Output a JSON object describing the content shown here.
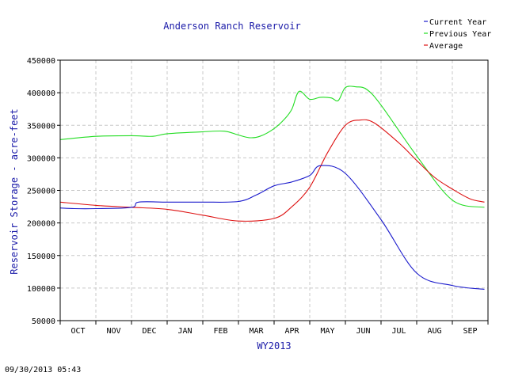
{
  "timestamp": "09/30/2013 05:43",
  "colors": {
    "current": "#1a1acc",
    "previous": "#22dd22",
    "average": "#dd1111",
    "title": "#1a1aa8",
    "grid": "#c8c8c8"
  },
  "chart_data": {
    "type": "line",
    "title": "Anderson Ranch Reservoir",
    "xlabel": "WY2013",
    "ylabel": "Reservoir Storage - acre-feet",
    "ylim": [
      50000,
      450000
    ],
    "yticks": [
      "450000",
      "400000",
      "350000",
      "300000",
      "250000",
      "200000",
      "150000",
      "100000",
      "50000"
    ],
    "categories": [
      "OCT",
      "NOV",
      "DEC",
      "JAN",
      "FEB",
      "MAR",
      "APR",
      "MAY",
      "JUN",
      "JUL",
      "AUG",
      "SEP"
    ],
    "grid": true,
    "legend_position": "top-right",
    "series": [
      {
        "name": "Current Year",
        "key": "current",
        "x": [
          0,
          0.4,
          1,
          2,
          2.2,
          3,
          4,
          5,
          5.5,
          6,
          6.5,
          7,
          7.3,
          8,
          9,
          10,
          11,
          11.9
        ],
        "values": [
          223000,
          222000,
          222000,
          224000,
          232000,
          232000,
          232000,
          233000,
          243000,
          257000,
          263000,
          273000,
          288000,
          276000,
          205000,
          123000,
          104000,
          98000
        ]
      },
      {
        "name": "Previous Year",
        "key": "previous",
        "x": [
          0,
          1,
          2,
          2.6,
          3,
          4,
          4.6,
          5,
          5.3,
          5.6,
          6,
          6.3,
          6.5,
          6.7,
          7,
          7.3,
          7.6,
          7.8,
          8,
          8.3,
          8.6,
          9,
          10,
          11,
          11.9
        ],
        "values": [
          328000,
          333000,
          334000,
          333000,
          337000,
          340000,
          341000,
          335000,
          331000,
          333000,
          345000,
          360000,
          375000,
          402000,
          390000,
          393000,
          392000,
          388000,
          408000,
          409000,
          405000,
          381000,
          303000,
          235000,
          224000
        ]
      },
      {
        "name": "Average",
        "key": "average",
        "x": [
          0,
          1,
          2,
          3,
          4,
          5,
          6,
          6.5,
          7,
          7.5,
          8,
          8.4,
          8.8,
          9.5,
          10,
          10.5,
          11,
          11.5,
          11.9
        ],
        "values": [
          232000,
          227000,
          224000,
          221000,
          212000,
          203000,
          207000,
          225000,
          255000,
          308000,
          350000,
          358000,
          354000,
          323000,
          296000,
          270000,
          252000,
          237000,
          232000
        ]
      }
    ]
  }
}
